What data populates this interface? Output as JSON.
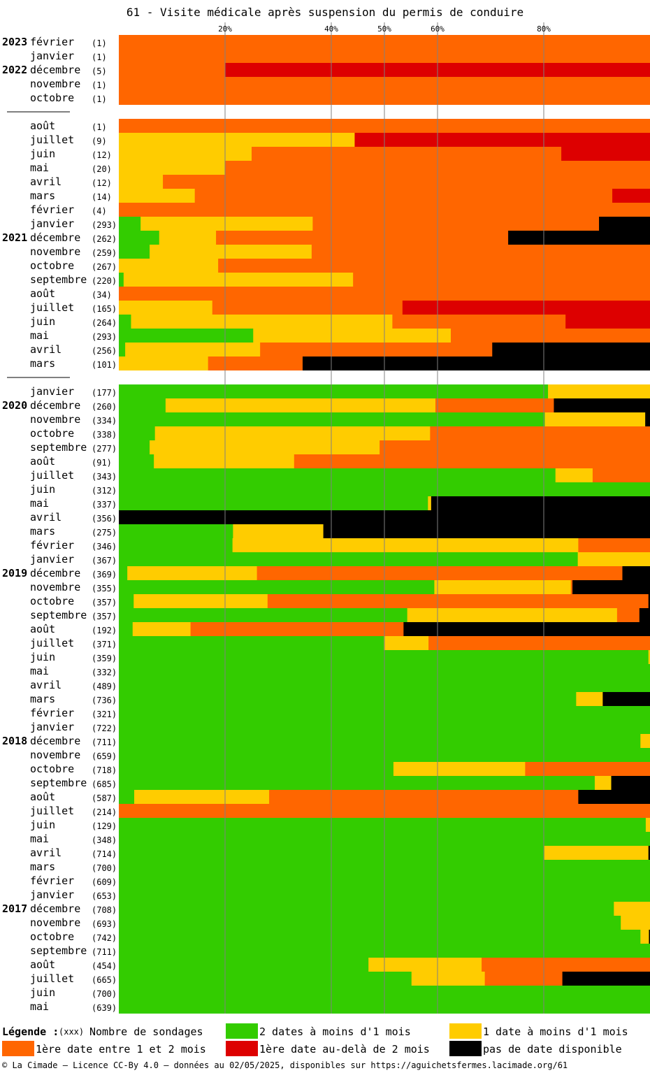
{
  "title": "61 - Visite médicale après suspension du permis de conduire",
  "chart_data": {
    "type": "bar",
    "orientation": "horizontal-stacked-percent",
    "xlim": [
      0,
      100
    ],
    "x_ticks": [
      "20%",
      "40%",
      "50%",
      "60%",
      "80%"
    ],
    "x_tick_values": [
      20,
      40,
      50,
      60,
      80
    ],
    "colors": {
      "green": "#33cc00",
      "yellow": "#ffcc00",
      "orange": "#ff6600",
      "red": "#dd0000",
      "black": "#000000"
    },
    "series_order": [
      "green",
      "yellow",
      "orange",
      "red",
      "black"
    ],
    "groups": [
      {
        "rows": [
          {
            "year": "2023",
            "month": "février",
            "count": "(1)",
            "values": [
              0,
              0,
              100,
              0,
              0
            ]
          },
          {
            "year": "",
            "month": "janvier",
            "count": "(1)",
            "values": [
              0,
              0,
              100,
              0,
              0
            ]
          },
          {
            "year": "2022",
            "month": "décembre",
            "count": "(5)",
            "values": [
              0,
              0,
              20,
              80,
              0
            ]
          },
          {
            "year": "",
            "month": "novembre",
            "count": "(1)",
            "values": [
              0,
              0,
              100,
              0,
              0
            ]
          },
          {
            "year": "",
            "month": "octobre",
            "count": "(1)",
            "values": [
              0,
              0,
              100,
              0,
              0
            ]
          }
        ]
      },
      {
        "rows": [
          {
            "year": "",
            "month": "août",
            "count": "(1)",
            "values": [
              0,
              0,
              100,
              0,
              0
            ]
          },
          {
            "year": "",
            "month": "juillet",
            "count": "(9)",
            "values": [
              0,
              44.4,
              0,
              55.6,
              0
            ]
          },
          {
            "year": "",
            "month": "juin",
            "count": "(12)",
            "values": [
              0,
              25,
              58.3,
              16.7,
              0
            ]
          },
          {
            "year": "",
            "month": "mai",
            "count": "(20)",
            "values": [
              0,
              20,
              80,
              0,
              0
            ]
          },
          {
            "year": "",
            "month": "avril",
            "count": "(12)",
            "values": [
              0,
              8.3,
              91.7,
              0,
              0
            ]
          },
          {
            "year": "",
            "month": "mars",
            "count": "(14)",
            "values": [
              0,
              14.3,
              78.6,
              7.1,
              0
            ]
          },
          {
            "year": "",
            "month": "février",
            "count": "(4)",
            "values": [
              0,
              0,
              100,
              0,
              0
            ]
          },
          {
            "year": "",
            "month": "janvier",
            "count": "(293)",
            "values": [
              4.1,
              32.4,
              53.9,
              0,
              9.6
            ]
          },
          {
            "year": "2021",
            "month": "décembre",
            "count": "(262)",
            "values": [
              7.6,
              10.7,
              55,
              0,
              26.7
            ]
          },
          {
            "year": "",
            "month": "novembre",
            "count": "(259)",
            "values": [
              5.8,
              30.5,
              63.7,
              0,
              0
            ]
          },
          {
            "year": "",
            "month": "octobre",
            "count": "(267)",
            "values": [
              0,
              18.7,
              81.3,
              0,
              0
            ]
          },
          {
            "year": "",
            "month": "septembre",
            "count": "(220)",
            "values": [
              0.9,
              43.2,
              55.9,
              0,
              0
            ]
          },
          {
            "year": "",
            "month": "août",
            "count": "(34)",
            "values": [
              0,
              0,
              100,
              0,
              0
            ]
          },
          {
            "year": "",
            "month": "juillet",
            "count": "(165)",
            "values": [
              0,
              17.6,
              35.8,
              46.6,
              0
            ]
          },
          {
            "year": "",
            "month": "juin",
            "count": "(264)",
            "values": [
              2.3,
              49.2,
              32.6,
              15.9,
              0
            ]
          },
          {
            "year": "",
            "month": "mai",
            "count": "(293)",
            "values": [
              25.3,
              37.2,
              37.5,
              0,
              0
            ]
          },
          {
            "year": "",
            "month": "avril",
            "count": "(256)",
            "values": [
              1.2,
              25.4,
              43.7,
              0,
              29.7
            ]
          },
          {
            "year": "",
            "month": "mars",
            "count": "(101)",
            "values": [
              0,
              16.8,
              17.8,
              0,
              65.4
            ]
          }
        ]
      },
      {
        "rows": [
          {
            "year": "",
            "month": "janvier",
            "count": "(177)",
            "values": [
              80.8,
              19.2,
              0,
              0,
              0
            ]
          },
          {
            "year": "2020",
            "month": "décembre",
            "count": "(260)",
            "values": [
              8.8,
              50.8,
              22.3,
              0,
              18.1
            ]
          },
          {
            "year": "",
            "month": "novembre",
            "count": "(334)",
            "values": [
              80.2,
              18.9,
              0,
              0,
              0.9
            ]
          },
          {
            "year": "",
            "month": "octobre",
            "count": "(338)",
            "values": [
              6.8,
              51.8,
              41.4,
              0,
              0
            ]
          },
          {
            "year": "",
            "month": "septembre",
            "count": "(277)",
            "values": [
              5.8,
              43.3,
              50.9,
              0,
              0
            ]
          },
          {
            "year": "",
            "month": "août",
            "count": "(91)",
            "values": [
              6.6,
              26.4,
              67,
              0,
              0
            ]
          },
          {
            "year": "",
            "month": "juillet",
            "count": "(343)",
            "values": [
              82.2,
              7,
              10.8,
              0,
              0
            ]
          },
          {
            "year": "",
            "month": "juin",
            "count": "(312)",
            "values": [
              100,
              0,
              0,
              0,
              0
            ]
          },
          {
            "year": "",
            "month": "mai",
            "count": "(337)",
            "values": [
              58.2,
              0.6,
              0,
              0,
              41.2
            ]
          },
          {
            "year": "",
            "month": "avril",
            "count": "(356)",
            "values": [
              0,
              0,
              0,
              0,
              100
            ]
          },
          {
            "year": "",
            "month": "mars",
            "count": "(275)",
            "values": [
              21.5,
              17,
              0,
              0,
              61.5
            ]
          },
          {
            "year": "",
            "month": "février",
            "count": "(346)",
            "values": [
              21.4,
              65.1,
              13.5,
              0,
              0
            ]
          },
          {
            "year": "",
            "month": "janvier",
            "count": "(367)",
            "values": [
              86.4,
              13.6,
              0,
              0,
              0
            ]
          },
          {
            "year": "2019",
            "month": "décembre",
            "count": "(369)",
            "values": [
              1.6,
              24.4,
              68.8,
              0,
              5.2
            ]
          },
          {
            "year": "",
            "month": "novembre",
            "count": "(355)",
            "values": [
              59.4,
              25.7,
              0.3,
              0,
              14.6
            ]
          },
          {
            "year": "",
            "month": "octobre",
            "count": "(357)",
            "values": [
              2.8,
              25.2,
              71.7,
              0,
              0.3
            ]
          },
          {
            "year": "",
            "month": "septembre",
            "count": "(357)",
            "values": [
              54.3,
              39.5,
              4.2,
              0,
              2
            ]
          },
          {
            "year": "",
            "month": "août",
            "count": "(192)",
            "values": [
              2.6,
              10.9,
              40.1,
              0,
              46.4
            ]
          },
          {
            "year": "",
            "month": "juillet",
            "count": "(371)",
            "values": [
              49.9,
              8.4,
              41.7,
              0,
              0
            ]
          },
          {
            "year": "",
            "month": "juin",
            "count": "(359)",
            "values": [
              99.7,
              0.3,
              0,
              0,
              0
            ]
          },
          {
            "year": "",
            "month": "mai",
            "count": "(332)",
            "values": [
              100,
              0,
              0,
              0,
              0
            ]
          },
          {
            "year": "",
            "month": "avril",
            "count": "(489)",
            "values": [
              100,
              0,
              0,
              0,
              0
            ]
          },
          {
            "year": "",
            "month": "mars",
            "count": "(736)",
            "values": [
              86.1,
              5,
              0,
              0,
              8.9
            ]
          },
          {
            "year": "",
            "month": "février",
            "count": "(321)",
            "values": [
              100,
              0,
              0,
              0,
              0
            ]
          },
          {
            "year": "",
            "month": "janvier",
            "count": "(722)",
            "values": [
              100,
              0,
              0,
              0,
              0
            ]
          },
          {
            "year": "2018",
            "month": "décembre",
            "count": "(711)",
            "values": [
              98.2,
              1.8,
              0,
              0,
              0
            ]
          },
          {
            "year": "",
            "month": "novembre",
            "count": "(659)",
            "values": [
              100,
              0,
              0,
              0,
              0
            ]
          },
          {
            "year": "",
            "month": "octobre",
            "count": "(718)",
            "values": [
              51.7,
              24.8,
              23.5,
              0,
              0
            ]
          },
          {
            "year": "",
            "month": "septembre",
            "count": "(685)",
            "values": [
              89.6,
              3.1,
              0,
              0,
              7.3
            ]
          },
          {
            "year": "",
            "month": "août",
            "count": "(587)",
            "values": [
              2.9,
              25.4,
              58.2,
              0,
              13.5
            ]
          },
          {
            "year": "",
            "month": "juillet",
            "count": "(214)",
            "values": [
              0,
              0,
              100,
              0,
              0
            ]
          },
          {
            "year": "",
            "month": "juin",
            "count": "(129)",
            "values": [
              99.2,
              0.8,
              0,
              0,
              0
            ]
          },
          {
            "year": "",
            "month": "mai",
            "count": "(348)",
            "values": [
              100,
              0,
              0,
              0,
              0
            ]
          },
          {
            "year": "",
            "month": "avril",
            "count": "(714)",
            "values": [
              80.1,
              19.6,
              0,
              0,
              0.3
            ]
          },
          {
            "year": "",
            "month": "mars",
            "count": "(700)",
            "values": [
              100,
              0,
              0,
              0,
              0
            ]
          },
          {
            "year": "",
            "month": "février",
            "count": "(609)",
            "values": [
              100,
              0,
              0,
              0,
              0
            ]
          },
          {
            "year": "",
            "month": "janvier",
            "count": "(653)",
            "values": [
              100,
              0,
              0,
              0,
              0
            ]
          },
          {
            "year": "2017",
            "month": "décembre",
            "count": "(708)",
            "values": [
              93.2,
              6.8,
              0,
              0,
              0
            ]
          },
          {
            "year": "",
            "month": "novembre",
            "count": "(693)",
            "values": [
              94.5,
              5.5,
              0,
              0,
              0
            ]
          },
          {
            "year": "",
            "month": "octobre",
            "count": "(742)",
            "values": [
              98.2,
              1.6,
              0,
              0,
              0.2
            ]
          },
          {
            "year": "",
            "month": "septembre",
            "count": "(711)",
            "values": [
              100,
              0,
              0,
              0,
              0
            ]
          },
          {
            "year": "",
            "month": "août",
            "count": "(454)",
            "values": [
              47,
              21.3,
              31.7,
              0,
              0
            ]
          },
          {
            "year": "",
            "month": "juillet",
            "count": "(665)",
            "values": [
              55.1,
              13.8,
              14.6,
              0,
              16.5
            ]
          },
          {
            "year": "",
            "month": "juin",
            "count": "(700)",
            "values": [
              100,
              0,
              0,
              0,
              0
            ]
          },
          {
            "year": "",
            "month": "mai",
            "count": "(639)",
            "values": [
              100,
              0,
              0,
              0,
              0
            ]
          }
        ]
      }
    ]
  },
  "legend": {
    "title": "Légende :",
    "count_hint": "(xxx)",
    "count_label": "Nombre de sondages",
    "items": [
      {
        "color": "#33cc00",
        "label": "2 dates à moins d'1 mois"
      },
      {
        "color": "#ffcc00",
        "label": "1 date à moins d'1 mois"
      },
      {
        "color": "#ff6600",
        "label": "1ère date entre 1 et 2 mois"
      },
      {
        "color": "#dd0000",
        "label": "1ère date au-delà de 2 mois"
      },
      {
        "color": "#000000",
        "label": "pas de date disponible"
      }
    ]
  },
  "footer": "© La Cimade — Licence CC-By 4.0 — données au 02/05/2025, disponibles sur https://aguichetsfermes.lacimade.org/61"
}
